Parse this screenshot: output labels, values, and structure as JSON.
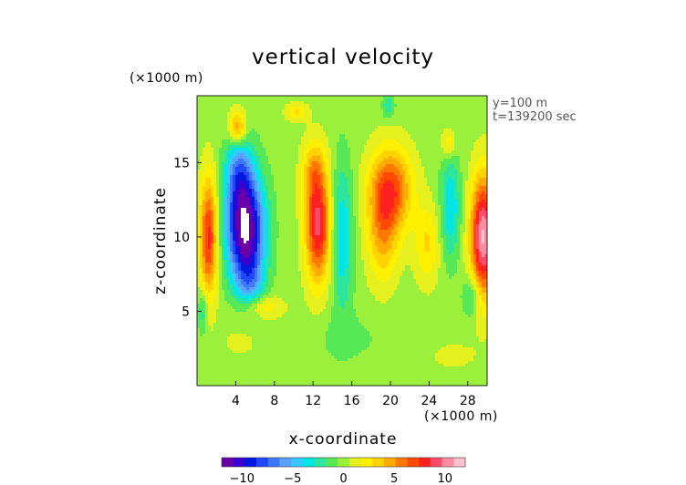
{
  "chart_data": {
    "type": "heatmap",
    "title": "vertical velocity",
    "xlabel": "x-coordinate",
    "ylabel": "z-coordinate",
    "x_unit": "(×1000 m)",
    "z_unit": "(×1000 m)",
    "info": [
      "y=100 m",
      "t=139200 sec"
    ],
    "xlim": [
      0,
      30
    ],
    "zlim": [
      0,
      19.5
    ],
    "x_ticks": [
      "4",
      "8",
      "12",
      "16",
      "20",
      "24",
      "28"
    ],
    "z_ticks": [
      "5",
      "10",
      "15"
    ],
    "colorbar": {
      "range": [
        -12,
        12
      ],
      "ticks": [
        "−10",
        "−5",
        "0",
        "5",
        "10"
      ],
      "colors": [
        "#6a00a8",
        "#3a00d0",
        "#0018e0",
        "#1f48ff",
        "#3f78ff",
        "#5aa0ff",
        "#36c8ff",
        "#00e6e6",
        "#2ce6a0",
        "#56e856",
        "#9af03a",
        "#e6f01e",
        "#fff000",
        "#ffd200",
        "#ffaa00",
        "#ff7800",
        "#ff4800",
        "#ff2020",
        "#ff4a6a",
        "#ff8ca0",
        "#ffc0d0"
      ]
    },
    "features": [
      {
        "x": 5.0,
        "z": 10.5,
        "sx": 1.9,
        "sz": 3.6,
        "value": -13
      },
      {
        "x": 4.3,
        "z": 14.5,
        "sx": 1.4,
        "sz": 2.6,
        "value": -5
      },
      {
        "x": 5.6,
        "z": 6.8,
        "sx": 1.4,
        "sz": 1.8,
        "value": -3
      },
      {
        "x": 1.2,
        "z": 10.0,
        "sx": 0.9,
        "sz": 4.0,
        "value": 8
      },
      {
        "x": 12.5,
        "z": 10.8,
        "sx": 1.3,
        "sz": 3.8,
        "value": 9
      },
      {
        "x": 12.0,
        "z": 14.5,
        "sx": 1.2,
        "sz": 2.0,
        "value": 3
      },
      {
        "x": 15.0,
        "z": 10.0,
        "sx": 1.1,
        "sz": 5.0,
        "value": -4
      },
      {
        "x": 20.0,
        "z": 13.2,
        "sx": 2.2,
        "sz": 2.8,
        "value": 7
      },
      {
        "x": 19.2,
        "z": 10.0,
        "sx": 1.6,
        "sz": 3.2,
        "value": 4
      },
      {
        "x": 23.8,
        "z": 9.5,
        "sx": 1.3,
        "sz": 2.6,
        "value": 3
      },
      {
        "x": 26.2,
        "z": 12.0,
        "sx": 1.0,
        "sz": 3.5,
        "value": -4
      },
      {
        "x": 29.6,
        "z": 10.0,
        "sx": 1.3,
        "sz": 4.0,
        "value": 11
      },
      {
        "x": 4.2,
        "z": 17.3,
        "sx": 0.9,
        "sz": 1.2,
        "value": 6
      },
      {
        "x": 10.3,
        "z": 18.4,
        "sx": 1.1,
        "sz": 0.6,
        "value": 3
      },
      {
        "x": 19.8,
        "z": 18.8,
        "sx": 0.6,
        "sz": 0.8,
        "value": -3
      },
      {
        "x": 26.0,
        "z": 16.3,
        "sx": 0.7,
        "sz": 1.0,
        "value": 3
      },
      {
        "x": 6.5,
        "z": 5.3,
        "sx": 2.2,
        "sz": 0.8,
        "value": 3
      },
      {
        "x": 0.6,
        "z": 5.0,
        "sx": 0.5,
        "sz": 1.5,
        "value": -3
      },
      {
        "x": 28.4,
        "z": 6.0,
        "sx": 0.9,
        "sz": 1.4,
        "value": -3
      },
      {
        "x": 4.5,
        "z": 3.0,
        "sx": 1.8,
        "sz": 1.0,
        "value": 1.2
      },
      {
        "x": 15.5,
        "z": 3.2,
        "sx": 3.5,
        "sz": 1.5,
        "value": -1
      },
      {
        "x": 26.5,
        "z": 2.0,
        "sx": 2.5,
        "sz": 1.0,
        "value": 1
      }
    ]
  }
}
